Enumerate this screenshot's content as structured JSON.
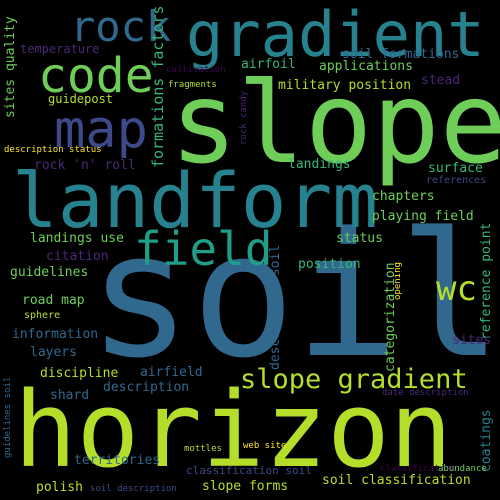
{
  "words": {
    "soil": "soil",
    "horizon": "horizon",
    "slope": "slope",
    "landform": "landform",
    "gradient": "gradient",
    "code": "code",
    "rock": "rock",
    "map": "map",
    "field": "field",
    "wc": "wc",
    "slope_gradient": "slope gradient",
    "formations_factors": "formations factors",
    "sites_quality": "sites quality",
    "temperature": "temperature",
    "cultivation": "cultivation",
    "airfoil": "airfoil",
    "applications": "applications",
    "soil_formations": "soil formations",
    "stead": "stead",
    "fragments": "fragments",
    "military_position": "military position",
    "guidepost": "guidepost",
    "rock_candy": "rock candy",
    "description_status": "description status",
    "rock_n_roll": "rock 'n' roll",
    "landings": "landings",
    "surface": "surface",
    "references": "references",
    "chapters": "chapters",
    "playing_field": "playing field",
    "reference_point": "reference point",
    "landings_use": "landings use",
    "status": "status",
    "description_soil": "description soil",
    "citation": "citation",
    "guidelines": "guidelines",
    "position": "position",
    "categorization": "categorization",
    "road_map": "road map",
    "sphere": "sphere",
    "opening": "opening",
    "information": "information",
    "sites": "sites",
    "layers": "layers",
    "discipline": "discipline",
    "airfield": "airfield",
    "description": "description",
    "shard": "shard",
    "guidelines_soil": "guidelines soil",
    "date_description": "date description",
    "coatings": "coatings",
    "mottles": "mottles",
    "web_site": "web site",
    "territories": "territories",
    "classification_soil": "classification soil",
    "classification": "classification",
    "abundance": "abundance",
    "polish": "polish",
    "soil_description": "soil description",
    "slope_forms": "slope forms",
    "soil_classification": "soil classification"
  },
  "colors": {
    "background": "#000000",
    "lime": "#b5de2b",
    "green": "#6ece58",
    "teal": "#26828e",
    "blue": "#31688e",
    "sea": "#1f9e89",
    "mint": "#35b779",
    "purple": "#482878",
    "violet": "#440154",
    "yellow": "#fde725",
    "indigo": "#3e4989"
  }
}
